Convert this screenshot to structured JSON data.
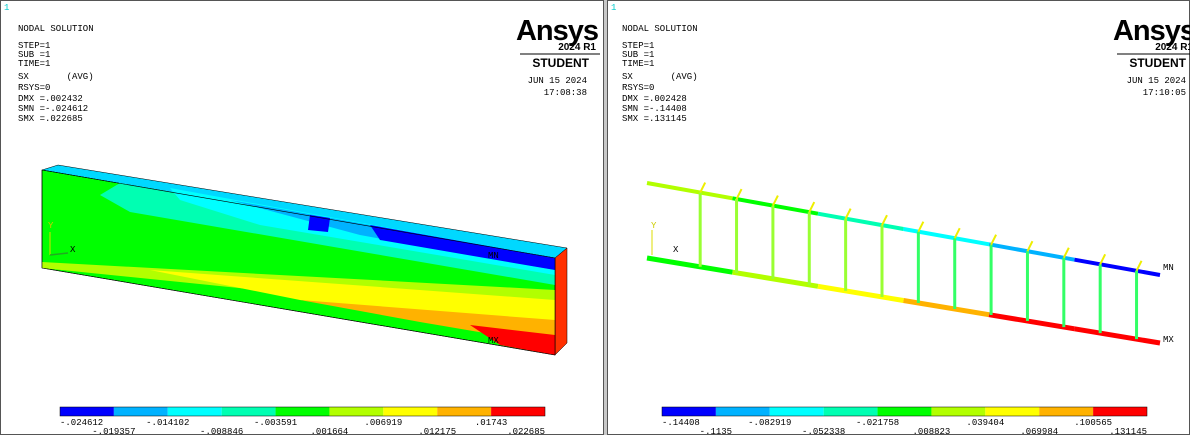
{
  "panels": [
    {
      "window_number": "1",
      "title": "NODAL SOLUTION",
      "info": [
        "STEP=1",
        "SUB =1",
        "TIME=1",
        "SX       (AVG)",
        "RSYS=0",
        "DMX =.002432",
        "SMN =-.024612",
        "SMX =.022685"
      ],
      "logo": "Ansys",
      "release": "2024 R1",
      "license": "STUDENT",
      "date": "JUN 15 2024",
      "time": "17:08:38",
      "min_label": "MN",
      "max_label": "MX",
      "axis_x": "X",
      "axis_y": "Y",
      "legend": {
        "colors": [
          "#0000ff",
          "#00b2ff",
          "#00ffff",
          "#00ffb2",
          "#00ff00",
          "#b2ff00",
          "#ffff00",
          "#ffb200",
          "#ff0000"
        ],
        "labels": [
          "-.024612",
          "-.019357",
          "-.014102",
          "-.008846",
          "-.003591",
          ".001664",
          ".006919",
          ".012175",
          ".01743",
          ".022685"
        ]
      }
    },
    {
      "window_number": "1",
      "title": "NODAL SOLUTION",
      "info": [
        "STEP=1",
        "SUB =1",
        "TIME=1",
        "SX       (AVG)",
        "RSYS=0",
        "DMX =.002428",
        "SMN =-.14408",
        "SMX =.131145"
      ],
      "logo": "Ansys",
      "release": "2024 R1",
      "license": "STUDENT",
      "date": "JUN 15 2024",
      "time": "17:10:05",
      "min_label": "MN",
      "max_label": "MX",
      "axis_x": "X",
      "axis_y": "Y",
      "legend": {
        "colors": [
          "#0000ff",
          "#00b2ff",
          "#00ffff",
          "#00ffb2",
          "#00ff00",
          "#b2ff00",
          "#ffff00",
          "#ffb200",
          "#ff0000"
        ],
        "labels": [
          "-.14408",
          "-.1135",
          "-.082919",
          "-.052338",
          "-.021758",
          ".008823",
          ".039404",
          ".069984",
          ".100565",
          ".131145"
        ]
      }
    }
  ]
}
